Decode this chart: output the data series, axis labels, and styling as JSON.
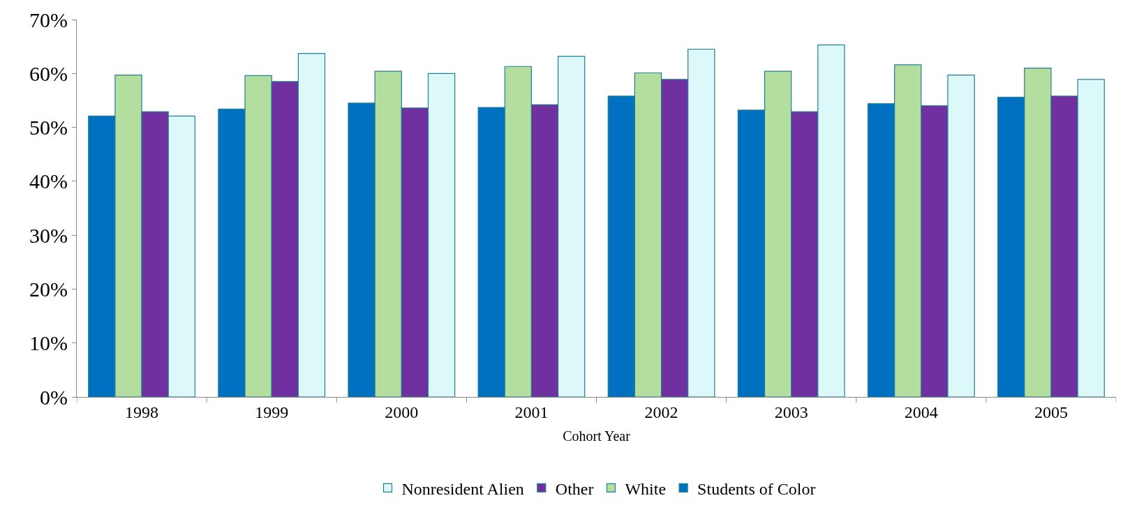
{
  "chart_data": {
    "type": "bar",
    "xlabel": "Cohort Year",
    "categories": [
      "1998",
      "1999",
      "2000",
      "2001",
      "2002",
      "2003",
      "2004",
      "2005"
    ],
    "series": [
      {
        "name": "Students of Color",
        "color": "#0070c0",
        "values": [
          52.1,
          53.4,
          54.5,
          53.7,
          55.8,
          53.2,
          54.4,
          55.6
        ]
      },
      {
        "name": "White",
        "color": "#b3dea0",
        "values": [
          59.7,
          59.6,
          60.4,
          61.3,
          60.1,
          60.4,
          61.6,
          61.0
        ]
      },
      {
        "name": "Other",
        "color": "#7030a0",
        "values": [
          52.9,
          58.5,
          53.6,
          54.2,
          58.9,
          52.9,
          54.0,
          55.8
        ]
      },
      {
        "name": "Nonresident Alien",
        "color": "#ddf8f8",
        "values": [
          52.1,
          63.7,
          60.0,
          63.2,
          64.5,
          65.3,
          59.7,
          58.9
        ]
      }
    ],
    "ylim": [
      0,
      70
    ],
    "yticks": [
      {
        "value": 0,
        "label": "0%"
      },
      {
        "value": 10,
        "label": "10%"
      },
      {
        "value": 20,
        "label": "20%"
      },
      {
        "value": 30,
        "label": "30%"
      },
      {
        "value": 40,
        "label": "40%"
      },
      {
        "value": 50,
        "label": "50%"
      },
      {
        "value": 60,
        "label": "60%"
      },
      {
        "value": 70,
        "label": "70%"
      }
    ],
    "grid": false,
    "legend": "bottom"
  }
}
